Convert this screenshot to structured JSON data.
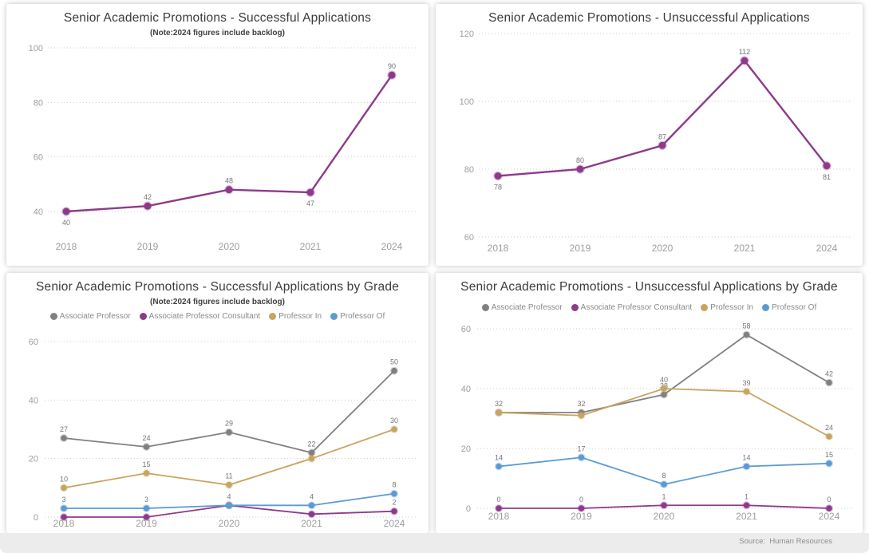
{
  "page": {
    "source_label": "Source:  Human Resources"
  },
  "colors": {
    "series_purple": "#8E3A8B",
    "series_gray": "#808080",
    "series_tan": "#C8A45F",
    "series_blue": "#5B9BD5",
    "gridline": "#CCCCCC",
    "axis_text": "#9E9E9E",
    "data_label_text": "#757575",
    "title_text": "#3B3B3B",
    "panel_bg": "#FFFFFF",
    "band_bg": "#ECECEC"
  },
  "chart_data": [
    {
      "type": "line",
      "title": "Senior Academic Promotions - Successful Applications",
      "subtitle": "(Note:2024 figures include backlog)",
      "categories": [
        "2018",
        "2019",
        "2020",
        "2021",
        "2024"
      ],
      "ylim": [
        40,
        100
      ],
      "y_ticks": [
        40,
        60,
        80,
        100
      ],
      "grid": "horizontal-dotted",
      "legend_position": "none",
      "series": [
        {
          "color": "#8E3A8B",
          "values": [
            40,
            42,
            48,
            47,
            90
          ],
          "labels": [
            "40",
            "42",
            "48",
            "47",
            "90"
          ],
          "label_side": [
            "below",
            "above",
            "above",
            "below",
            "above"
          ]
        }
      ]
    },
    {
      "type": "line",
      "title": "Senior Academic Promotions - Unsuccessful Applications",
      "categories": [
        "2018",
        "2019",
        "2020",
        "2021",
        "2024"
      ],
      "ylim": [
        60,
        120
      ],
      "y_ticks": [
        60,
        80,
        100,
        120
      ],
      "grid": "horizontal-dotted",
      "legend_position": "none",
      "series": [
        {
          "color": "#8E3A8B",
          "values": [
            78,
            80,
            87,
            112,
            81
          ],
          "labels": [
            "78",
            "80",
            "87",
            "112",
            "81"
          ],
          "label_side": [
            "below",
            "above",
            "above",
            "above",
            "below"
          ]
        }
      ]
    },
    {
      "type": "line",
      "title": "Senior Academic Promotions - Successful Applications by Grade",
      "subtitle": "(Note:2024 figures include backlog)",
      "categories": [
        "2018",
        "2019",
        "2020",
        "2021",
        "2024"
      ],
      "ylim": [
        0,
        60
      ],
      "y_ticks": [
        0,
        20,
        40,
        60
      ],
      "grid": "horizontal-dotted",
      "legend_position": "top",
      "series": [
        {
          "name": "Associate Professor",
          "color": "#808080",
          "values": [
            27,
            24,
            29,
            22,
            50
          ],
          "labels": [
            "27",
            "24",
            "29",
            "22",
            "50"
          ]
        },
        {
          "name": "Associate Professor Consultant",
          "color": "#8E3A8B",
          "values": [
            0,
            0,
            4,
            1,
            2
          ],
          "labels": [
            "",
            "",
            "",
            "",
            "2"
          ]
        },
        {
          "name": "Professor In",
          "color": "#C8A45F",
          "values": [
            10,
            15,
            11,
            20,
            30
          ],
          "labels": [
            "10",
            "15",
            "11",
            "",
            "30"
          ]
        },
        {
          "name": "Professor Of",
          "color": "#5B9BD5",
          "values": [
            3,
            3,
            4,
            4,
            8
          ],
          "labels": [
            "3",
            "3",
            "4",
            "4",
            "8"
          ]
        }
      ]
    },
    {
      "type": "line",
      "title": "Senior Academic Promotions - Unsuccessful Applications by Grade",
      "categories": [
        "2018",
        "2019",
        "2020",
        "2021",
        "2024"
      ],
      "ylim": [
        0,
        60
      ],
      "y_ticks": [
        0,
        20,
        40,
        60
      ],
      "grid": "horizontal-dotted",
      "legend_position": "top",
      "series": [
        {
          "name": "Associate Professor",
          "color": "#808080",
          "values": [
            32,
            32,
            38,
            58,
            42
          ],
          "labels": [
            "32",
            "32",
            "38",
            "58",
            "42"
          ]
        },
        {
          "name": "Associate Professor Consultant",
          "color": "#8E3A8B",
          "values": [
            0,
            0,
            1,
            1,
            0
          ],
          "labels": [
            "0",
            "0",
            "1",
            "1",
            "0"
          ]
        },
        {
          "name": "Professor In",
          "color": "#C8A45F",
          "values": [
            32,
            31,
            40,
            39,
            24
          ],
          "labels": [
            "",
            "",
            "40",
            "39",
            "24"
          ]
        },
        {
          "name": "Professor Of",
          "color": "#5B9BD5",
          "values": [
            14,
            17,
            8,
            14,
            15
          ],
          "labels": [
            "14",
            "17",
            "8",
            "14",
            "15"
          ]
        }
      ]
    }
  ]
}
